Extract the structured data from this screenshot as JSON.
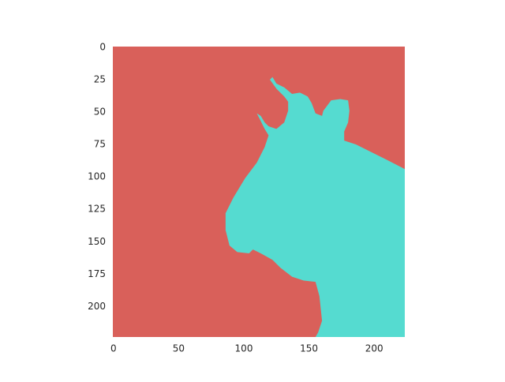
{
  "chart_data": {
    "type": "image",
    "xlim": [
      -0.5,
      223.5
    ],
    "ylim": [
      223.5,
      -0.5
    ],
    "xticks": [
      0,
      50,
      100,
      150,
      200
    ],
    "yticks": [
      0,
      25,
      50,
      75,
      100,
      125,
      150,
      175,
      200
    ],
    "grid": false,
    "background_color": "#d9605a",
    "regions": [
      {
        "color": "#55dbd0",
        "x": [
          223.5,
          210,
          198,
          186,
          177,
          177,
          180,
          181,
          180,
          174,
          167,
          161,
          160,
          155,
          152,
          149,
          143,
          137,
          131,
          125,
          122,
          120,
          125,
          131,
          134,
          134,
          131,
          125,
          119,
          116,
          113,
          110,
          112,
          116,
          119,
          116,
          110,
          101,
          92,
          86,
          86,
          89,
          95,
          104,
          107,
          113,
          122,
          128,
          137,
          146,
          155,
          158,
          160,
          157,
          155,
          223.5
        ],
        "y": [
          94,
          87,
          81,
          75,
          72,
          65,
          58,
          49,
          41,
          40,
          41,
          49,
          53,
          51,
          43,
          38,
          35,
          36,
          31,
          28,
          23,
          25,
          32,
          38,
          42,
          49,
          58,
          63,
          61,
          58,
          53,
          51,
          55,
          63,
          68,
          77,
          89,
          101,
          116,
          128,
          141,
          153,
          158,
          159,
          156,
          159,
          164,
          170,
          177,
          180,
          181,
          192,
          211,
          220,
          223.5,
          223.5
        ]
      }
    ]
  }
}
